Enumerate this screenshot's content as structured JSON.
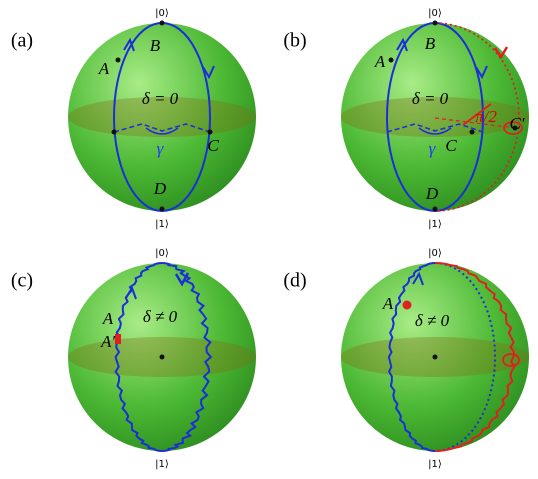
{
  "panels": [
    {
      "label": "(a)",
      "ket0": "|0⟩",
      "ket1": "|1⟩",
      "texts": [
        "A",
        "B",
        "δ = 0",
        "C",
        "D",
        "γ"
      ]
    },
    {
      "label": "(b)",
      "ket0": "|0⟩",
      "ket1": "|1⟩",
      "texts": [
        "A",
        "B",
        "δ = 0",
        "π/2",
        "C",
        "C′",
        "γ",
        "D"
      ]
    },
    {
      "label": "(c)",
      "ket0": "|0⟩",
      "ket1": "|1⟩",
      "texts": [
        "A",
        "A′",
        "δ ≠ 0"
      ]
    },
    {
      "label": "(d)",
      "ket0": "|0⟩",
      "ket1": "|1⟩",
      "texts": [
        "A",
        "δ ≠ 0"
      ]
    }
  ]
}
